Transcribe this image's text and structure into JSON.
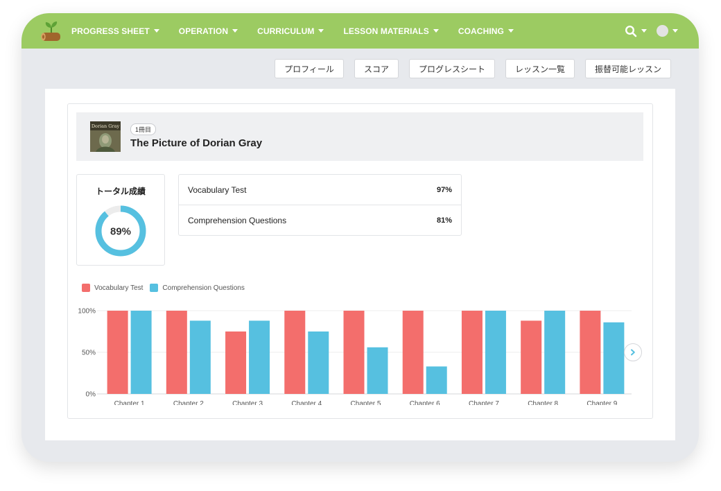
{
  "nav": {
    "items": [
      {
        "label": "PROGRESS SHEET"
      },
      {
        "label": "OPERATION"
      },
      {
        "label": "CURRICULUM"
      },
      {
        "label": "LESSON MATERIALS"
      },
      {
        "label": "COACHING"
      }
    ]
  },
  "subnav": {
    "buttons": [
      {
        "label": "プロフィール"
      },
      {
        "label": "スコア"
      },
      {
        "label": "プログレスシート"
      },
      {
        "label": "レッスン一覧"
      },
      {
        "label": "振替可能レッスン"
      }
    ]
  },
  "book": {
    "volume_badge": "1冊目",
    "title": "The Picture of Dorian Gray",
    "cover_text": "Dorian Gray"
  },
  "total": {
    "label": "トータル成績",
    "value_text": "89%",
    "value": 89
  },
  "scores": [
    {
      "name": "Vocabulary Test",
      "value": "97%"
    },
    {
      "name": "Comprehension Questions",
      "value": "81%"
    }
  ],
  "colors": {
    "topbar": "#9ccb62",
    "vocabulary": "#f36e6c",
    "comprehension": "#56c0e0"
  },
  "chart_data": {
    "type": "bar",
    "categories": [
      "Chapter 1",
      "Chapter 2",
      "Chapter 3",
      "Chapter 4",
      "Chapter 5",
      "Chapter 6",
      "Chapter 7",
      "Chapter 8",
      "Chapter 9"
    ],
    "series": [
      {
        "name": "Vocabulary Test",
        "values": [
          100,
          100,
          75,
          100,
          100,
          100,
          100,
          88,
          100
        ]
      },
      {
        "name": "Comprehension Questions",
        "values": [
          100,
          88,
          88,
          75,
          56,
          33,
          100,
          100,
          86
        ]
      }
    ],
    "yticks": [
      "100%",
      "50%",
      "0%"
    ],
    "ylim": [
      0,
      100
    ],
    "legend_position": "top-left",
    "grid": true
  }
}
